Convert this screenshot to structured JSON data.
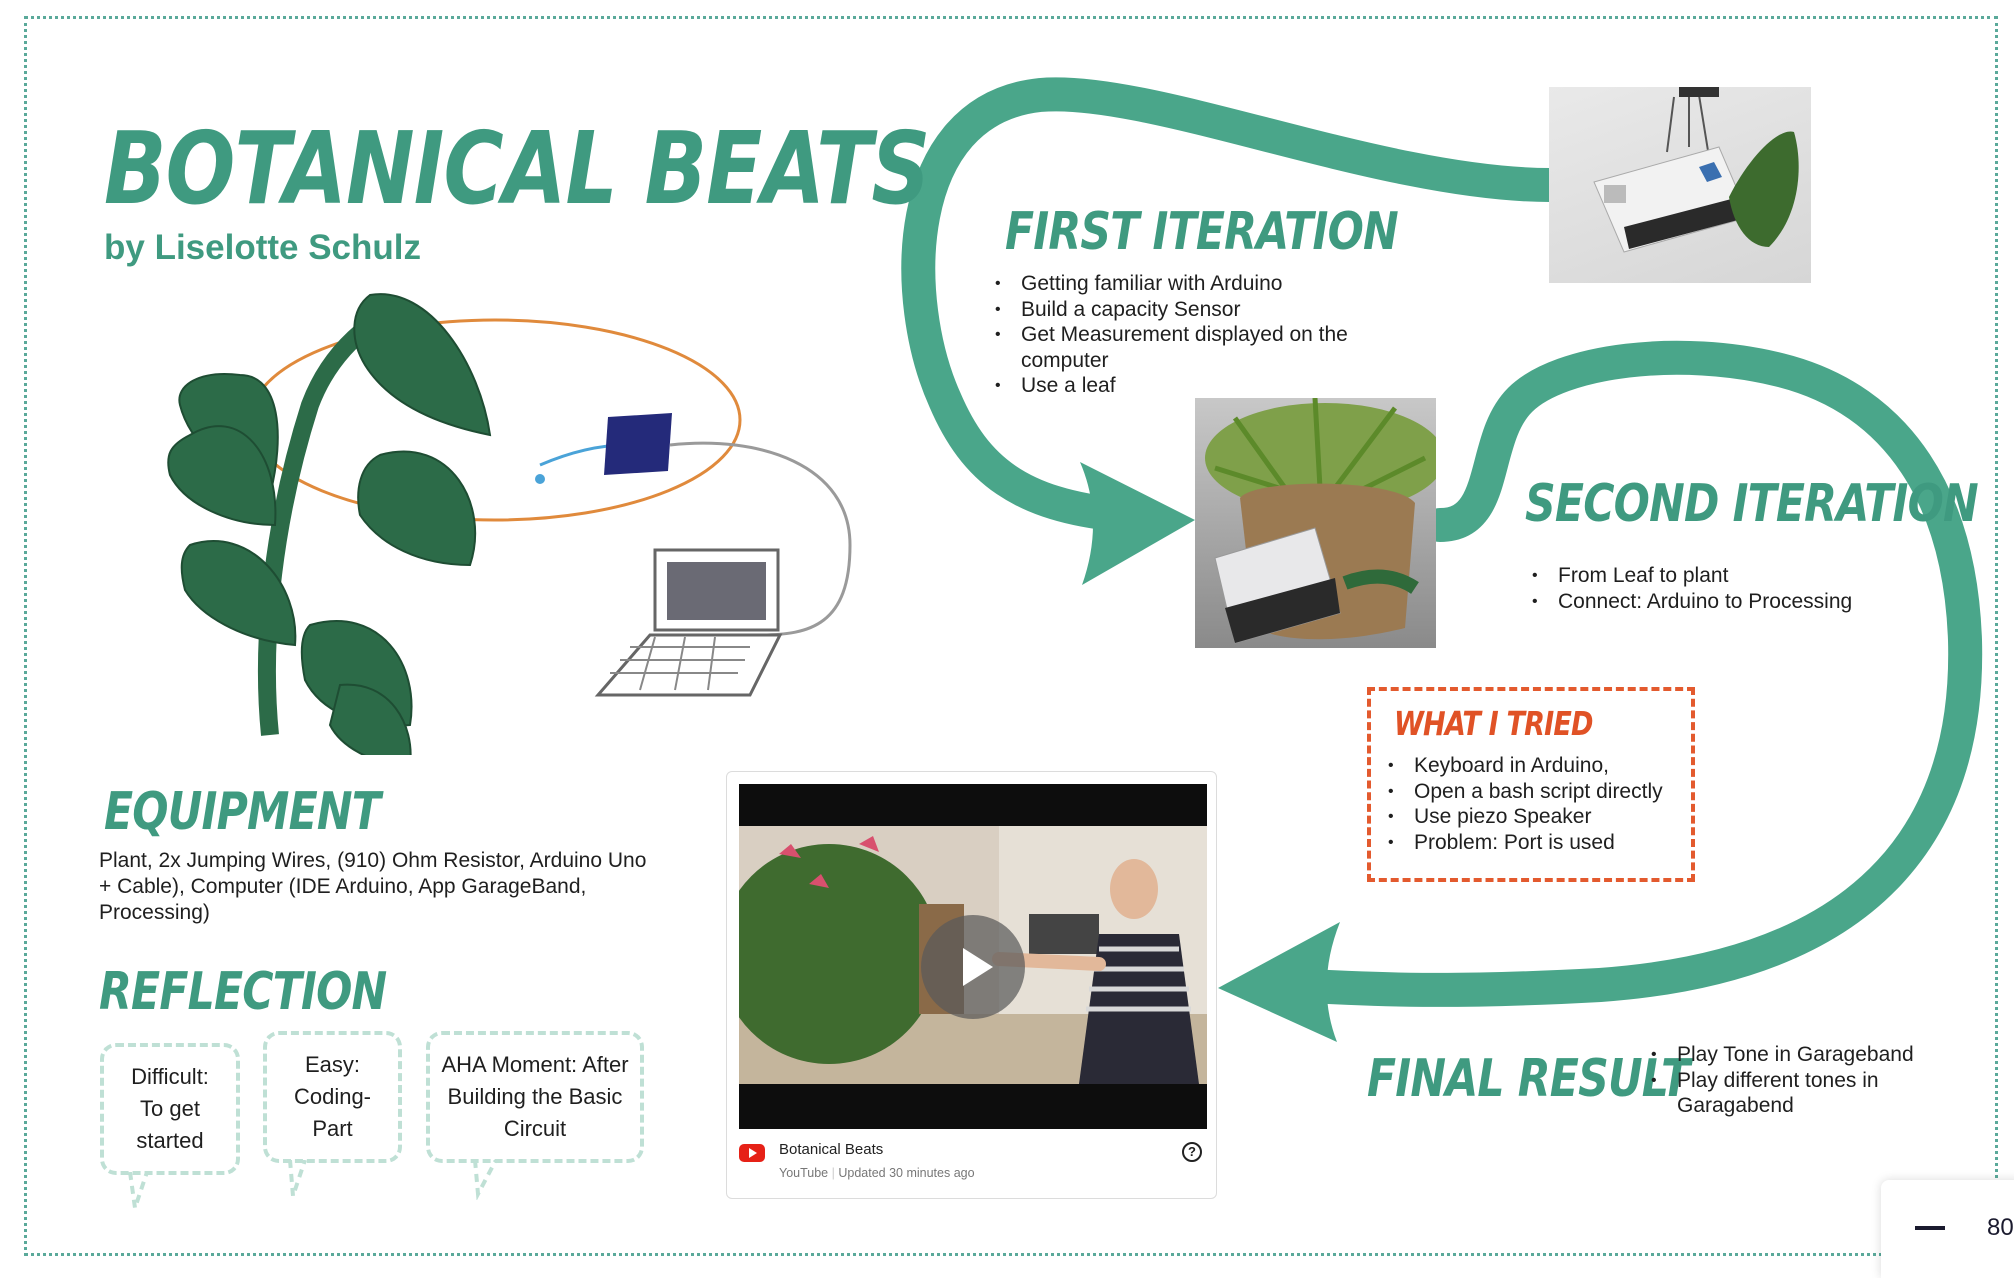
{
  "board": {
    "title": "BOTANICAL BEATS",
    "byline": "by Liselotte Schulz",
    "equipment": {
      "title": "EQUIPMENT",
      "text": "Plant, 2x Jumping Wires, (910) Ohm Resistor, Arduino Uno + Cable), Computer (IDE Arduino, App GarageBand, Processing)"
    },
    "reflection": {
      "title": "REFLECTION",
      "bubbles": [
        "Difficult: To get started",
        "Easy: Coding-Part",
        "AHA Moment: After Building the Basic Circuit"
      ]
    },
    "first_iteration": {
      "title": "FIRST ITERATION",
      "items": [
        "Getting familiar with Arduino",
        "Build a capacity Sensor",
        "Get Measurement displayed on the computer",
        "Use a leaf"
      ]
    },
    "second_iteration": {
      "title": "SECOND ITERATION",
      "items": [
        "From Leaf to plant",
        "Connect: Arduino to Processing"
      ]
    },
    "what_i_tried": {
      "title": "WHAT I TRIED",
      "items": [
        "Keyboard in Arduino,",
        "Open a bash script directly",
        "Use piezo Speaker",
        "Problem: Port is used"
      ]
    },
    "final_result": {
      "title": "FINAL RESULT",
      "items": [
        "Play Tone in Garageband",
        "Play different tones in Garagabend"
      ]
    },
    "video": {
      "title": "Botanical Beats",
      "source": "YouTube",
      "updated": "Updated 30 minutes ago",
      "icon": "play-icon"
    }
  },
  "zoom": {
    "value": "80"
  },
  "colors": {
    "accent": "#4aa68a",
    "tried": "#e35a2e",
    "leaf": "#2c6b48"
  }
}
